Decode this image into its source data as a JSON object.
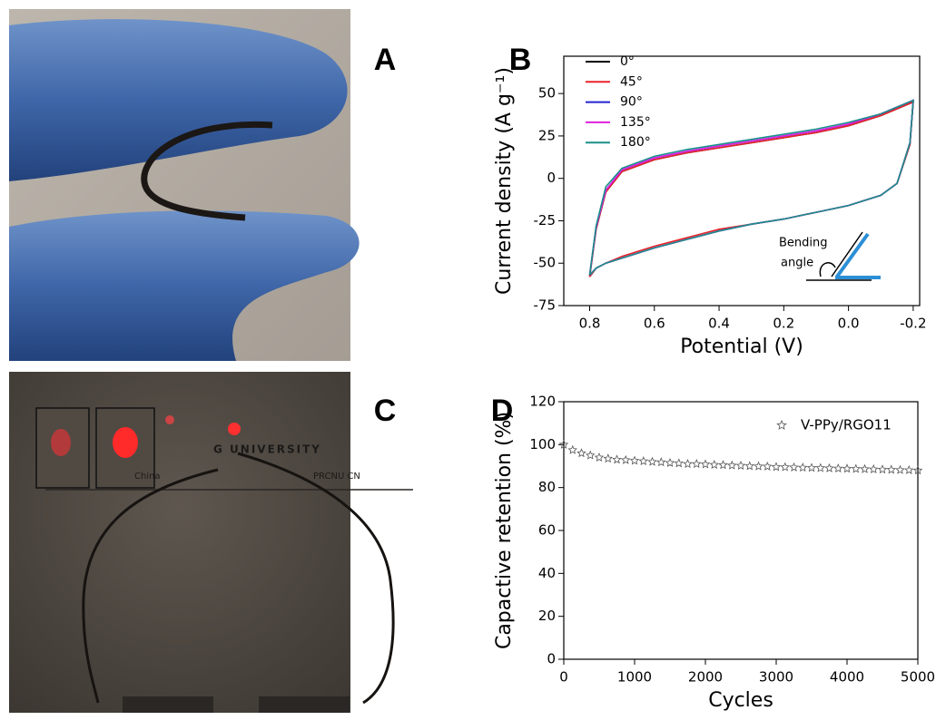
{
  "panels": {
    "a": "A",
    "b": "B",
    "c": "C",
    "d": "D"
  },
  "photo_c_texts": [
    "G UNIVERSITY",
    "China",
    "PRCNU CN"
  ],
  "chart_data": [
    {
      "type": "line",
      "x_label": "Potential (V)",
      "y_label": "Current density (A g⁻¹)",
      "annotations": [
        "Bending",
        "angle"
      ],
      "x": [
        0.8,
        0.78,
        0.75,
        0.7,
        0.6,
        0.5,
        0.4,
        0.3,
        0.2,
        0.1,
        0,
        -0.1,
        -0.2,
        -0.19,
        -0.15,
        -0.1,
        0,
        0.1,
        0.2,
        0.3,
        0.4,
        0.5,
        0.6,
        0.7,
        0.75,
        0.78,
        0.8
      ],
      "xlim": [
        0.88,
        -0.22
      ],
      "xticks": [
        0.8,
        0.6,
        0.4,
        0.2,
        {
          "value": 0,
          "label": "0.0"
        },
        -0.2
      ],
      "ylim": [
        -75,
        72
      ],
      "yticks": [
        50,
        25,
        0,
        -25,
        -50,
        -75
      ],
      "series": [
        {
          "name": "0°",
          "color": "#000000",
          "values": [
            -58,
            -30,
            -8,
            4,
            11,
            15,
            18,
            21,
            24,
            27,
            31,
            37,
            45,
            20,
            -3,
            -10,
            -16,
            -20,
            -24,
            -27,
            -31,
            -36,
            -41,
            -47,
            -50,
            -53,
            -58
          ]
        },
        {
          "name": "45°",
          "color": "#e8232a",
          "values": [
            -58,
            -30,
            -8,
            4,
            11,
            15,
            18,
            21,
            24,
            27,
            31,
            37,
            45,
            20,
            -3,
            -10,
            -16,
            -20,
            -24,
            -27,
            -30,
            -35,
            -40,
            -46,
            -50,
            -53,
            -58
          ]
        },
        {
          "name": "90°",
          "color": "#2323d0",
          "values": [
            -57,
            -29,
            -7,
            5,
            12,
            16,
            19,
            22,
            25,
            28,
            32,
            38,
            46,
            21,
            -3,
            -10,
            -16,
            -20,
            -24,
            -27,
            -31,
            -36,
            -41,
            -47,
            -50,
            -53,
            -57
          ]
        },
        {
          "name": "135°",
          "color": "#e020e0",
          "values": [
            -57,
            -29,
            -7,
            5,
            12,
            16,
            19,
            22,
            25,
            28,
            32,
            38,
            46,
            21,
            -3,
            -10,
            -16,
            -20,
            -24,
            -27,
            -31,
            -36,
            -41,
            -47,
            -50,
            -53,
            -57
          ]
        },
        {
          "name": "180°",
          "color": "#1a8f8a",
          "values": [
            -57,
            -28,
            -5,
            6,
            13,
            17,
            20,
            23,
            26,
            29,
            33,
            38,
            46,
            21,
            -3,
            -10,
            -16,
            -20,
            -24,
            -27,
            -31,
            -36,
            -41,
            -47,
            -50,
            -53,
            -57
          ]
        }
      ]
    },
    {
      "type": "scatter",
      "x_label": "Cycles",
      "y_label": "Capactive retention (%)",
      "x": [
        0,
        125,
        250,
        375,
        500,
        625,
        750,
        875,
        1000,
        1125,
        1250,
        1375,
        1500,
        1625,
        1750,
        1875,
        2000,
        2125,
        2250,
        2375,
        2500,
        2625,
        2750,
        2875,
        3000,
        3125,
        3250,
        3375,
        3500,
        3625,
        3750,
        3875,
        4000,
        4125,
        4250,
        4375,
        4500,
        4625,
        4750,
        4875,
        5000
      ],
      "xlim": [
        0,
        5000
      ],
      "xticks": [
        0,
        1000,
        2000,
        3000,
        4000,
        5000
      ],
      "ylim": [
        0,
        120
      ],
      "yticks": [
        0,
        20,
        40,
        60,
        80,
        100,
        120
      ],
      "series": [
        {
          "name": "V-PPy/RGO11",
          "color": "#555555",
          "values": [
            100,
            97.5,
            96,
            95,
            94,
            93.5,
            93,
            92.8,
            92.5,
            92.3,
            92,
            91.8,
            91.5,
            91.3,
            91,
            91,
            90.8,
            90.6,
            90.5,
            90.3,
            90.2,
            90,
            89.9,
            89.8,
            89.6,
            89.5,
            89.4,
            89.3,
            89.2,
            89.1,
            89,
            88.9,
            88.8,
            88.7,
            88.6,
            88.5,
            88.4,
            88.3,
            88.2,
            88.1,
            88
          ]
        }
      ]
    }
  ]
}
